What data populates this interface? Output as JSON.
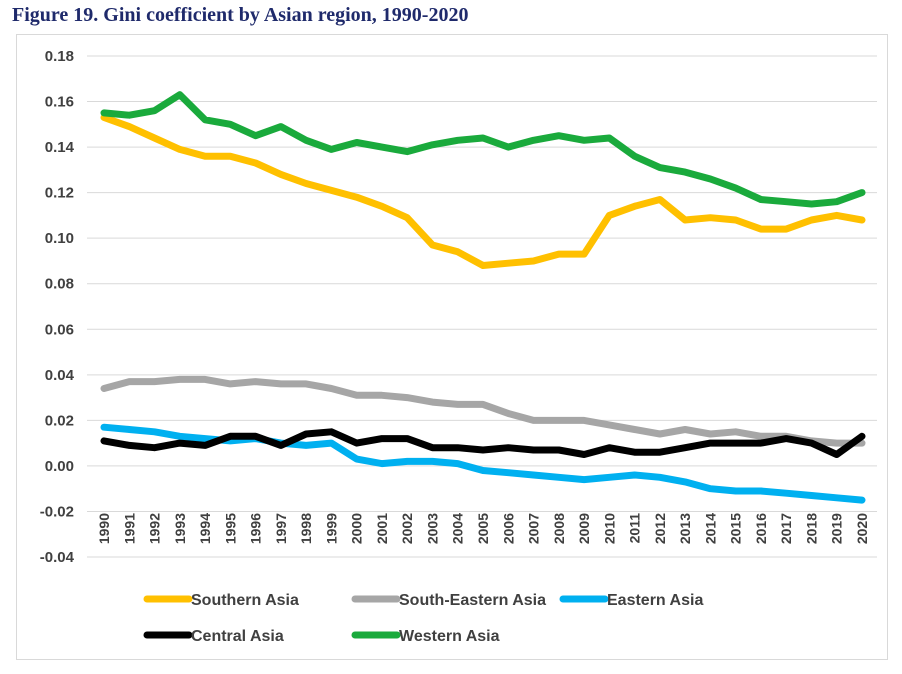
{
  "title": "Figure 19. Gini coefficient by Asian region, 1990-2020",
  "chart_data": {
    "type": "line",
    "title": "Figure 19. Gini coefficient by Asian region, 1990-2020",
    "xlabel": "",
    "ylabel": "",
    "x": [
      1990,
      1991,
      1992,
      1993,
      1994,
      1995,
      1996,
      1997,
      1998,
      1999,
      2000,
      2001,
      2002,
      2003,
      2004,
      2005,
      2006,
      2007,
      2008,
      2009,
      2010,
      2011,
      2012,
      2013,
      2014,
      2015,
      2016,
      2017,
      2018,
      2019,
      2020
    ],
    "ylim": [
      -0.04,
      0.18
    ],
    "yticks": [
      "0.18",
      "0.16",
      "0.14",
      "0.12",
      "0.10",
      "0.08",
      "0.06",
      "0.04",
      "0.02",
      "0.00",
      "-0.02",
      "-0.04"
    ],
    "ytick_values": [
      0.18,
      0.16,
      0.14,
      0.12,
      0.1,
      0.08,
      0.06,
      0.04,
      0.02,
      0.0,
      -0.02,
      -0.04
    ],
    "grid": true,
    "legend_position": "bottom",
    "series": [
      {
        "name": "Southern Asia",
        "color": "#FFC000",
        "values": [
          0.153,
          0.149,
          0.144,
          0.139,
          0.136,
          0.136,
          0.133,
          0.128,
          0.124,
          0.121,
          0.118,
          0.114,
          0.109,
          0.097,
          0.094,
          0.088,
          0.089,
          0.09,
          0.093,
          0.093,
          0.11,
          0.114,
          0.117,
          0.108,
          0.109,
          0.108,
          0.104,
          0.104,
          0.108,
          0.11,
          0.108
        ]
      },
      {
        "name": "South-Eastern Asia",
        "color": "#A6A6A6",
        "values": [
          0.034,
          0.037,
          0.037,
          0.038,
          0.038,
          0.036,
          0.037,
          0.036,
          0.036,
          0.034,
          0.031,
          0.031,
          0.03,
          0.028,
          0.027,
          0.027,
          0.023,
          0.02,
          0.02,
          0.02,
          0.018,
          0.016,
          0.014,
          0.016,
          0.014,
          0.015,
          0.013,
          0.013,
          0.011,
          0.01,
          0.01
        ]
      },
      {
        "name": "Eastern Asia",
        "color": "#00B0F0",
        "values": [
          0.017,
          0.016,
          0.015,
          0.013,
          0.012,
          0.011,
          0.012,
          0.01,
          0.009,
          0.01,
          0.003,
          0.001,
          0.002,
          0.002,
          0.001,
          -0.002,
          -0.003,
          -0.004,
          -0.005,
          -0.006,
          -0.005,
          -0.004,
          -0.005,
          -0.007,
          -0.01,
          -0.011,
          -0.011,
          -0.012,
          -0.013,
          -0.014,
          -0.015
        ]
      },
      {
        "name": "Central Asia",
        "color": "#000000",
        "values": [
          0.011,
          0.009,
          0.008,
          0.01,
          0.009,
          0.013,
          0.013,
          0.009,
          0.014,
          0.015,
          0.01,
          0.012,
          0.012,
          0.008,
          0.008,
          0.007,
          0.008,
          0.007,
          0.007,
          0.005,
          0.008,
          0.006,
          0.006,
          0.008,
          0.01,
          0.01,
          0.01,
          0.012,
          0.01,
          0.005,
          0.013
        ]
      },
      {
        "name": "Western Asia",
        "color": "#1AAA3C",
        "values": [
          0.155,
          0.154,
          0.156,
          0.163,
          0.152,
          0.15,
          0.145,
          0.149,
          0.143,
          0.139,
          0.142,
          0.14,
          0.138,
          0.141,
          0.143,
          0.144,
          0.14,
          0.143,
          0.145,
          0.143,
          0.144,
          0.136,
          0.131,
          0.129,
          0.126,
          0.122,
          0.117,
          0.116,
          0.115,
          0.116,
          0.12
        ]
      }
    ]
  }
}
